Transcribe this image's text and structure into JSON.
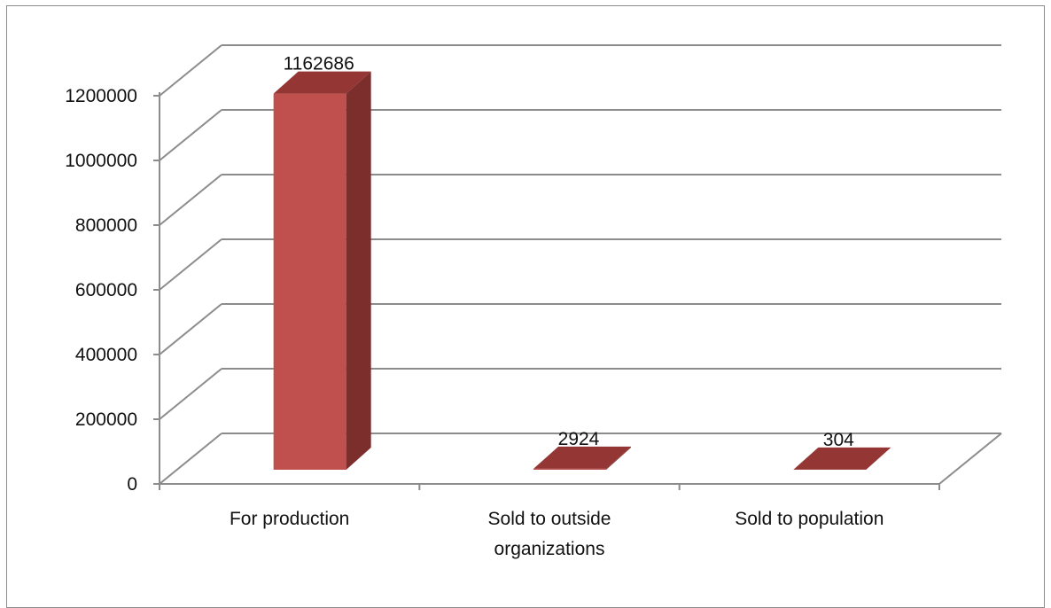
{
  "chart_data": {
    "type": "bar",
    "style": "3d-column",
    "categories": [
      "For production",
      "Sold to outside organizations",
      "Sold to population"
    ],
    "category_lines": [
      [
        "For production"
      ],
      [
        "Sold to outside",
        "organizations"
      ],
      [
        "Sold to population"
      ]
    ],
    "values": [
      1162686,
      2924,
      304
    ],
    "data_labels": [
      "1162686",
      "2924",
      "304"
    ],
    "ylim": [
      0,
      1200000
    ],
    "yticks": [
      0,
      200000,
      400000,
      600000,
      800000,
      1000000,
      1200000
    ],
    "ytick_labels": [
      "0",
      "200000",
      "400000",
      "600000",
      "800000",
      "1000000",
      "1200000"
    ],
    "grid": true,
    "legend": "none",
    "colors": {
      "bar_front": "#c0504d",
      "bar_side": "#7b2e2c",
      "bar_top": "#943634",
      "grid": "#8c8c8c",
      "frame": "#8c8c8c"
    }
  }
}
